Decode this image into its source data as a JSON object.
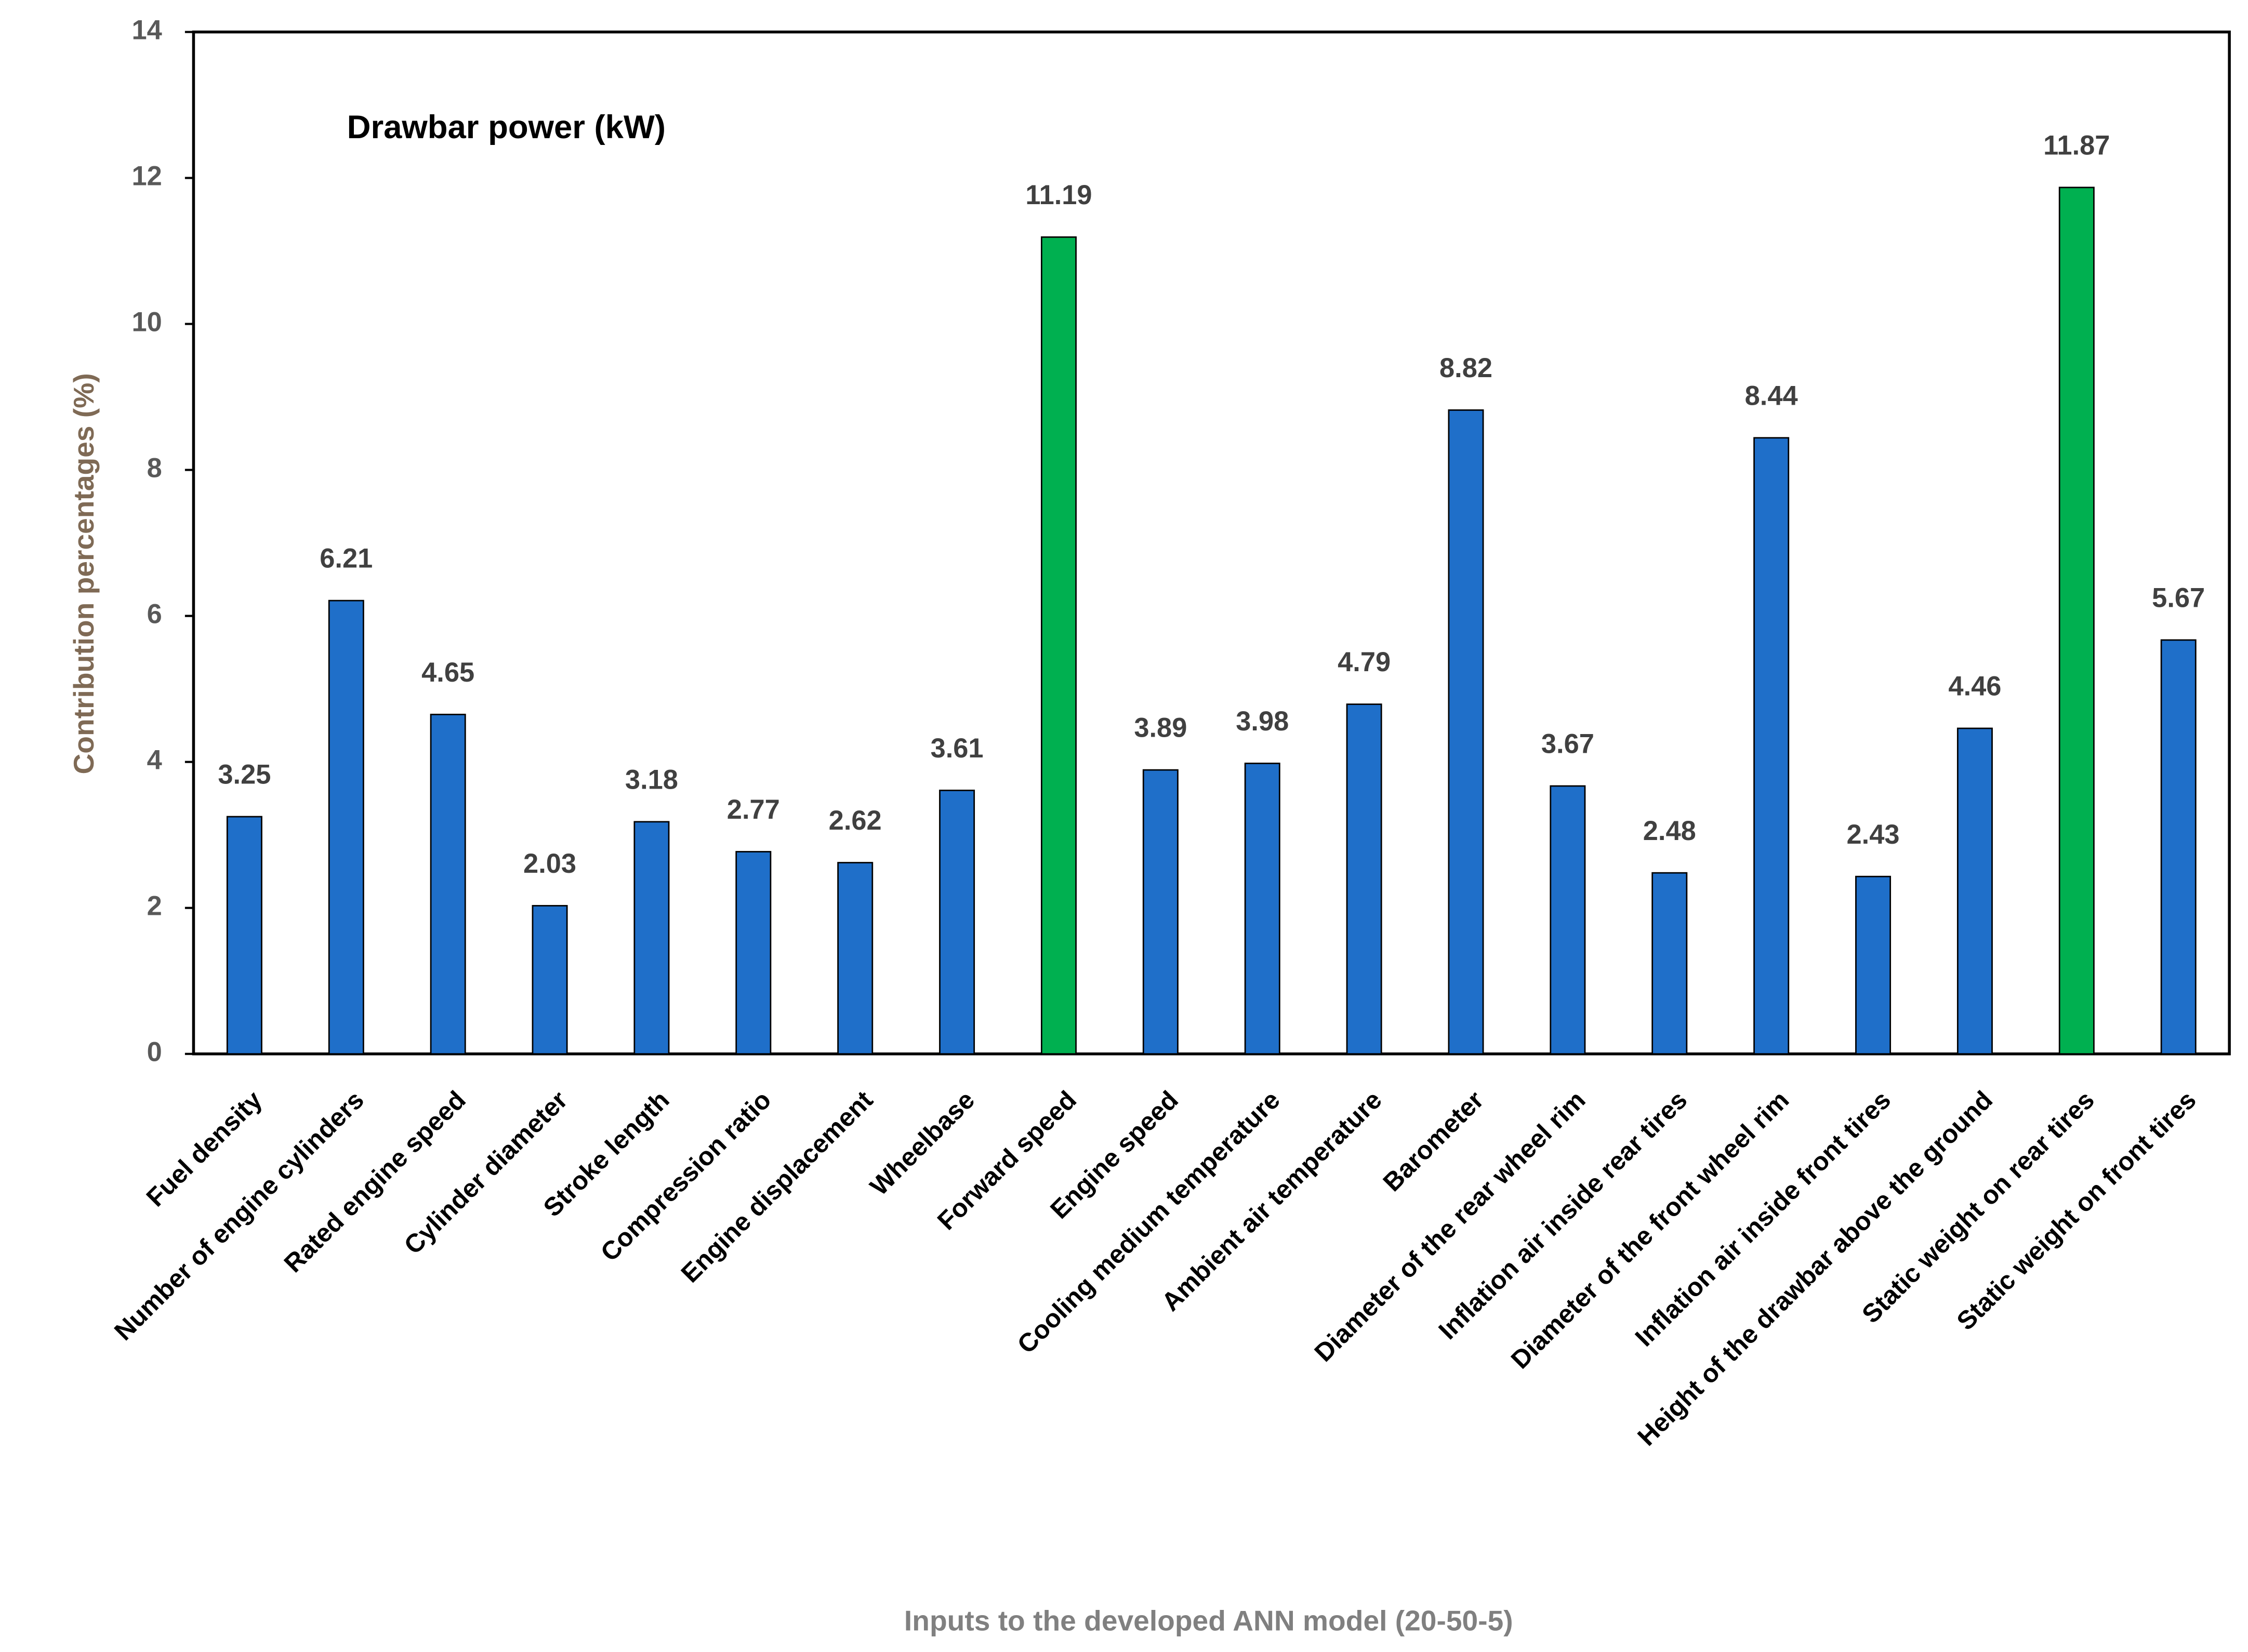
{
  "chart_data": {
    "type": "bar",
    "title": "Drawbar power (kW)",
    "x_label": "Inputs to the developed ANN model (20-50-5)",
    "y_label": "Contribution percentages  (%)",
    "categories": [
      "Fuel density",
      "Number of engine cylinders",
      "Rated engine speed",
      "Cylinder diameter",
      "Stroke length",
      "Compression ratio",
      "Engine displacement",
      "Wheelbase",
      "Forward speed",
      "Engine speed",
      "Cooling medium temperature",
      "Ambient air temperature",
      "Barometer",
      "Diameter of the rear wheel rim",
      "Inflation air inside rear tires",
      "Diameter of the front wheel rim",
      "Inflation air inside front tires",
      "Height of the drawbar above the ground",
      "Static weight on rear tires",
      "Static weight on front tires"
    ],
    "values": [
      3.25,
      6.21,
      4.65,
      2.03,
      3.18,
      2.77,
      2.62,
      3.61,
      11.19,
      3.89,
      3.98,
      4.79,
      8.82,
      3.67,
      2.48,
      8.44,
      2.43,
      4.46,
      11.87,
      5.67
    ],
    "colors": [
      "#1f6fc9",
      "#1f6fc9",
      "#1f6fc9",
      "#1f6fc9",
      "#1f6fc9",
      "#1f6fc9",
      "#1f6fc9",
      "#1f6fc9",
      "#00b050",
      "#1f6fc9",
      "#1f6fc9",
      "#1f6fc9",
      "#1f6fc9",
      "#1f6fc9",
      "#1f6fc9",
      "#1f6fc9",
      "#1f6fc9",
      "#1f6fc9",
      "#00b050",
      "#1f6fc9"
    ],
    "ylim": [
      0,
      14
    ],
    "yticks": [
      0,
      2,
      4,
      6,
      8,
      10,
      12,
      14
    ],
    "grid": false
  }
}
